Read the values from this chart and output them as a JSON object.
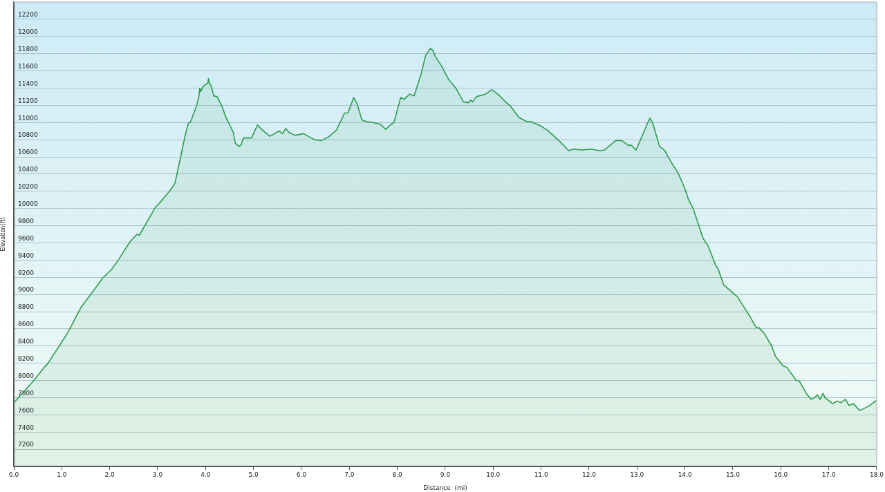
{
  "chart_data": {
    "type": "area",
    "xlabel": "Distance  (mi)",
    "ylabel": "Elevation(ft)",
    "color": "#2e9b4e",
    "marker": "none",
    "legend": false,
    "grid": "y",
    "xlim": [
      0,
      18
    ],
    "ylim": [
      7000,
      12400
    ],
    "xticks": [
      {
        "value": 0,
        "label": "0.0"
      },
      {
        "value": 1,
        "label": "1.0"
      },
      {
        "value": 2,
        "label": "2.0"
      },
      {
        "value": 3,
        "label": "3.0"
      },
      {
        "value": 4,
        "label": "4.0"
      },
      {
        "value": 5,
        "label": "5.0"
      },
      {
        "value": 6,
        "label": "6.0"
      },
      {
        "value": 7,
        "label": "7.0"
      },
      {
        "value": 8,
        "label": "8.0"
      },
      {
        "value": 9,
        "label": "9.0"
      },
      {
        "value": 10,
        "label": "10.0"
      },
      {
        "value": 11,
        "label": "11.0"
      },
      {
        "value": 12,
        "label": "12.0"
      },
      {
        "value": 13,
        "label": "13.0"
      },
      {
        "value": 14,
        "label": "14.0"
      },
      {
        "value": 15,
        "label": "15.0"
      },
      {
        "value": 16,
        "label": "16.0"
      },
      {
        "value": 17,
        "label": "17.0"
      },
      {
        "value": 18,
        "label": "18.0"
      }
    ],
    "yticks": [
      7200,
      7400,
      7600,
      7800,
      8000,
      8200,
      8400,
      8600,
      8800,
      9000,
      9200,
      9400,
      9600,
      9800,
      10000,
      10200,
      10400,
      10600,
      10800,
      11000,
      11200,
      11400,
      11600,
      11800,
      12000,
      12200
    ],
    "x": [
      0,
      0.42,
      0.63,
      0.7,
      0.97,
      1.13,
      1.4,
      1.59,
      1.75,
      1.85,
      2.04,
      2.19,
      2.42,
      2.57,
      2.62,
      2.95,
      3.05,
      3.26,
      3.36,
      3.48,
      3.57,
      3.64,
      3.69,
      3.81,
      3.86,
      3.88,
      3.9,
      3.95,
      4.05,
      4.06,
      4.08,
      4.12,
      4.17,
      4.24,
      4.34,
      4.43,
      4.48,
      4.58,
      4.62,
      4.7,
      4.74,
      4.79,
      4.96,
      5.08,
      5.15,
      5.25,
      5.34,
      5.44,
      5.53,
      5.61,
      5.67,
      5.75,
      5.87,
      6.04,
      6.27,
      6.42,
      6.56,
      6.73,
      6.9,
      6.97,
      7.09,
      7.16,
      7.26,
      7.35,
      7.49,
      7.64,
      7.76,
      7.85,
      7.93,
      8.07,
      8.14,
      8.26,
      8.35,
      8.5,
      8.59,
      8.69,
      8.74,
      8.79,
      8.93,
      9.07,
      9.22,
      9.38,
      9.48,
      9.53,
      9.57,
      9.65,
      9.84,
      9.97,
      10.1,
      10.24,
      10.36,
      10.53,
      10.7,
      10.79,
      10.99,
      11.13,
      11.37,
      11.58,
      11.66,
      11.85,
      12.04,
      12.23,
      12.32,
      12.56,
      12.68,
      12.83,
      12.87,
      12.98,
      13.09,
      13.21,
      13.27,
      13.33,
      13.47,
      13.57,
      13.71,
      13.85,
      14,
      14.07,
      14.17,
      14.38,
      14.48,
      14.64,
      14.69,
      14.81,
      15.1,
      15.19,
      15.36,
      15.48,
      15.55,
      15.65,
      15.81,
      15.89,
      16.05,
      16.13,
      16.32,
      16.39,
      16.53,
      16.63,
      16.7,
      16.77,
      16.82,
      16.88,
      16.92,
      17.08,
      17.18,
      17.25,
      17.35,
      17.42,
      17.51,
      17.65,
      17.83,
      18
    ],
    "values": [
      7740,
      8000,
      8150,
      8190,
      8420,
      8560,
      8850,
      8990,
      9110,
      9190,
      9290,
      9410,
      9610,
      9700,
      9690,
      10010,
      10070,
      10210,
      10290,
      10600,
      10840,
      10990,
      11010,
      11190,
      11300,
      11400,
      11360,
      11420,
      11460,
      11510,
      11460,
      11420,
      11310,
      11300,
      11190,
      11050,
      11000,
      10880,
      10760,
      10720,
      10740,
      10820,
      10820,
      10970,
      10930,
      10880,
      10840,
      10870,
      10900,
      10870,
      10930,
      10880,
      10850,
      10870,
      10800,
      10790,
      10830,
      10910,
      11110,
      11110,
      11290,
      11220,
      11030,
      11010,
      11000,
      10980,
      10920,
      10970,
      11000,
      11290,
      11270,
      11330,
      11310,
      11570,
      11780,
      11860,
      11840,
      11770,
      11650,
      11500,
      11400,
      11240,
      11230,
      11260,
      11240,
      11300,
      11330,
      11380,
      11330,
      11250,
      11190,
      11060,
      11010,
      11010,
      10960,
      10910,
      10790,
      10670,
      10690,
      10680,
      10690,
      10670,
      10680,
      10790,
      10790,
      10730,
      10740,
      10680,
      10820,
      10980,
      11050,
      10990,
      10720,
      10680,
      10540,
      10420,
      10230,
      10110,
      10000,
      9650,
      9570,
      9340,
      9300,
      9110,
      8970,
      8890,
      8740,
      8620,
      8610,
      8550,
      8400,
      8280,
      8170,
      8150,
      8000,
      7990,
      7850,
      7780,
      7800,
      7830,
      7780,
      7850,
      7800,
      7730,
      7760,
      7740,
      7780,
      7710,
      7730,
      7650,
      7700,
      7770
    ]
  }
}
